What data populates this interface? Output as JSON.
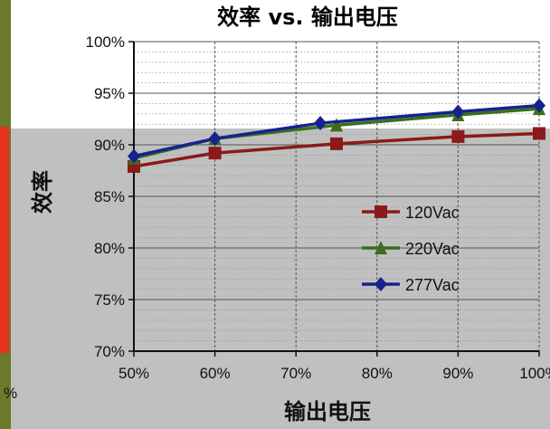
{
  "chart_data": {
    "type": "line",
    "title": "效率 vs. 输出电压",
    "xlabel": "输出电压",
    "ylabel": "效率",
    "x_ticks": [
      "50%",
      "60%",
      "70%",
      "80%",
      "90%",
      "100%"
    ],
    "y_ticks": [
      "70%",
      "75%",
      "80%",
      "85%",
      "90%",
      "95%",
      "100%"
    ],
    "xlim": [
      50,
      100
    ],
    "ylim": [
      70,
      100
    ],
    "grid": true,
    "legend_position": "center-right",
    "series": [
      {
        "name": "120Vac",
        "color": "#8b1a1a",
        "marker": "square",
        "x": [
          50,
          60,
          75,
          90,
          100
        ],
        "y": [
          87.9,
          89.2,
          90.1,
          90.8,
          91.1
        ]
      },
      {
        "name": "220Vac",
        "color": "#3a6e1a",
        "marker": "triangle",
        "x": [
          50,
          60,
          75,
          90,
          100
        ],
        "y": [
          88.7,
          90.6,
          91.9,
          92.9,
          93.5
        ]
      },
      {
        "name": "277Vac",
        "color": "#16238e",
        "marker": "diamond",
        "x": [
          50,
          60,
          73,
          90,
          100
        ],
        "y": [
          88.9,
          90.6,
          92.1,
          93.2,
          93.8
        ]
      }
    ]
  }
}
